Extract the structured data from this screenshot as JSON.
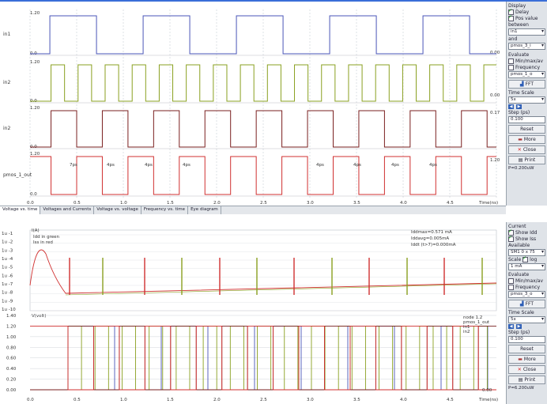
{
  "top_panel": {
    "signals": [
      {
        "name": "in1",
        "max": "1.20",
        "min": "0.0",
        "right": "0.00",
        "color": "#4a56b8"
      },
      {
        "name": "in2",
        "max": "1.20",
        "min": "0.0",
        "right": "0.00",
        "color": "#8aa020"
      },
      {
        "name": "in2",
        "max": "1.20",
        "min": "0.0",
        "right": "0.17",
        "color": "#7a1f1f"
      },
      {
        "name": "pmos_1_out",
        "max": "1.20",
        "min": "0.0",
        "right": "1.20",
        "color": "#d03030"
      }
    ],
    "delay_labels": [
      "7ps",
      "4ps",
      "4ps",
      "4ps",
      "4ps",
      "4ps",
      "4ps",
      "4ps"
    ],
    "x_ticks": [
      "0.0",
      "0.5",
      "1.0",
      "1.5",
      "2.0",
      "2.5",
      "3.0",
      "3.5",
      "4.0",
      "4.5"
    ],
    "x_unit": "Time(ns)",
    "tabs": [
      "Voltage vs. time",
      "Voltages and Currents",
      "Voltage vs. voltage",
      "Frequency vs. time",
      "Eye diagram"
    ],
    "side": {
      "display_title": "Display",
      "delay": "Delay",
      "pos_value": "Pos value",
      "between": "between",
      "sel1": "in1",
      "and": "and",
      "sel2": "pmos_3_i",
      "evaluate": "Evaluate",
      "slew": "Min/max/av",
      "freq": "Frequency",
      "sel3": "pmos_1_o",
      "fft": "FFT",
      "time_scale": "Time Scale",
      "ts_sel": "5x",
      "step": "Step (ps)",
      "step_val": "0.100",
      "reset": "Reset",
      "more": "More",
      "close": "Close",
      "print": "Print",
      "cap": "P=0.200uW"
    }
  },
  "bottom_panel": {
    "current_label": "I(A)",
    "legend": [
      "Idd in green",
      "Iss in red"
    ],
    "stats": [
      "Iddmax=0.571 mA",
      "Iddavg=0.005mA",
      "Iddt (t>7)=0.000mA"
    ],
    "log_ticks": [
      "1u -1",
      "1u -2",
      "1u -3",
      "1u -4",
      "1u -5",
      "1u -6",
      "1u -7",
      "1u -8",
      "1u -9",
      "1u -10"
    ],
    "voltage_label": "V(volt)",
    "volt_ticks": [
      "1.40",
      "1.20",
      "1.00",
      "0.80",
      "0.60",
      "0.40",
      "0.20",
      "0.00"
    ],
    "node_legend": [
      "node 1.2",
      "pmos_1_out",
      "in1",
      "in2"
    ],
    "x_ticks": [
      "0.0",
      "0.5",
      "1.0",
      "1.5",
      "2.0",
      "2.5",
      "3.0",
      "3.5",
      "4.0",
      "4.5"
    ],
    "x_unit": "Time(ns)",
    "right_val": "0.00",
    "side": {
      "current_title": "Current",
      "show_idd": "Show Idd",
      "show_iss": "Show Iss",
      "available": "Available",
      "sel_avail": "SM1 0 x 75",
      "scale": "Scale",
      "scale_log": "log",
      "sel_scale": "1 mA",
      "evaluate": "Evaluate",
      "slew": "Min/max/av",
      "freq": "Frequency",
      "sel3": "pmos_3_o",
      "fft": "FFT",
      "time_scale": "Time Scale",
      "ts_sel": "5x",
      "step": "Step (ps)",
      "step_val": "0.100",
      "reset": "Reset",
      "more": "More",
      "close": "Close",
      "print": "Print",
      "cap": "P=6.200uW"
    }
  },
  "colors": {
    "blue": "#4a56b8",
    "green": "#8aa020",
    "darkred": "#7a1f1f",
    "red": "#d03030",
    "grid": "#9aa3ad"
  }
}
